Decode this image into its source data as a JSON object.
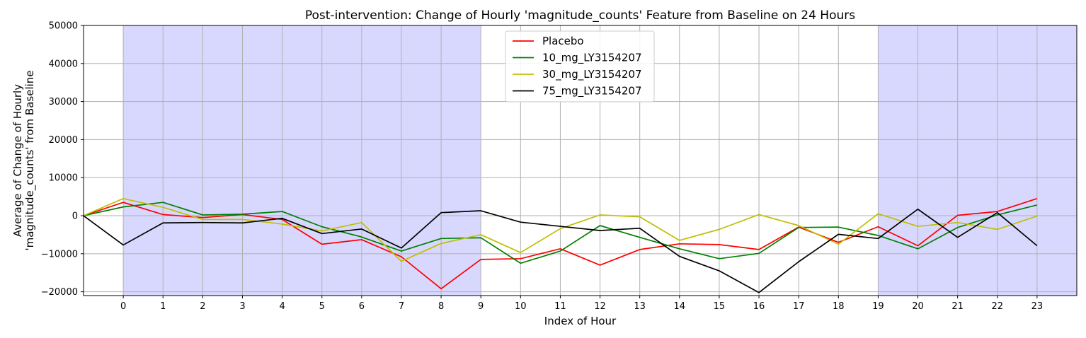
{
  "chart_data": {
    "type": "line",
    "title": "Post-intervention: Change of Hourly 'magnitude_counts' Feature from Baseline on 24 Hours",
    "xlabel": "Index of Hour",
    "ylabel_line1": "Average of Change of Hourly",
    "ylabel_line2": "'magnitude_counts' from Baseline",
    "xlim": [
      -1,
      24
    ],
    "ylim": [
      -21000,
      50000
    ],
    "x": [
      -1,
      0,
      1,
      2,
      3,
      4,
      5,
      6,
      7,
      8,
      9,
      10,
      11,
      12,
      13,
      14,
      15,
      16,
      17,
      18,
      19,
      20,
      21,
      22,
      23
    ],
    "x_ticks": [
      0,
      1,
      2,
      3,
      4,
      5,
      6,
      7,
      8,
      9,
      10,
      11,
      12,
      13,
      14,
      15,
      16,
      17,
      18,
      19,
      20,
      21,
      22,
      23
    ],
    "x_tick_labels": [
      "0",
      "1",
      "2",
      "3",
      "4",
      "5",
      "6",
      "7",
      "8",
      "9",
      "10",
      "11",
      "12",
      "13",
      "14",
      "15",
      "16",
      "17",
      "18",
      "19",
      "20",
      "21",
      "22",
      "23"
    ],
    "y_ticks": [
      -20000,
      -10000,
      0,
      10000,
      20000,
      30000,
      40000,
      50000
    ],
    "y_tick_labels": [
      "−20000",
      "−10000",
      "0",
      "10000",
      "20000",
      "30000",
      "40000",
      "50000"
    ],
    "grid": true,
    "legend_position": "top-center",
    "shaded_regions": [
      {
        "from": 0,
        "to": 9,
        "color": "#d8d8ff"
      },
      {
        "from": 19,
        "to": 24,
        "color": "#d8d8ff"
      }
    ],
    "series": [
      {
        "name": "Placebo",
        "color": "#ff0000",
        "values": [
          0,
          3500,
          300,
          -500,
          300,
          -1000,
          -7500,
          -6300,
          -10800,
          -19200,
          -11500,
          -11300,
          -8700,
          -13000,
          -8900,
          -7400,
          -7600,
          -8900,
          -3000,
          -7000,
          -2900,
          -7900,
          100,
          1100,
          4500
        ]
      },
      {
        "name": "10_mg_LY3154207",
        "color": "#008000",
        "values": [
          0,
          2300,
          3500,
          200,
          400,
          1100,
          -2900,
          -5600,
          -9300,
          -6000,
          -5800,
          -12500,
          -9300,
          -2600,
          -5700,
          -8700,
          -11300,
          -9900,
          -3100,
          -3000,
          -5200,
          -8700,
          -3100,
          200,
          2800
        ]
      },
      {
        "name": "30_mg_LY3154207",
        "color": "#bfbf00",
        "values": [
          0,
          4500,
          2200,
          -1000,
          -1000,
          -2200,
          -4000,
          -1800,
          -12000,
          -7300,
          -5000,
          -9700,
          -3400,
          200,
          -300,
          -6500,
          -3600,
          300,
          -2600,
          -7500,
          500,
          -2800,
          -1800,
          -3600,
          -100
        ]
      },
      {
        "name": "75_mg_LY3154207",
        "color": "#000000",
        "values": [
          0,
          -7700,
          -1900,
          -1800,
          -1900,
          -700,
          -4700,
          -3500,
          -8500,
          800,
          1300,
          -1700,
          -2800,
          -3900,
          -3300,
          -10700,
          -14500,
          -20200,
          -12100,
          -4900,
          -6000,
          1700,
          -5700,
          800,
          -7900
        ]
      }
    ]
  }
}
